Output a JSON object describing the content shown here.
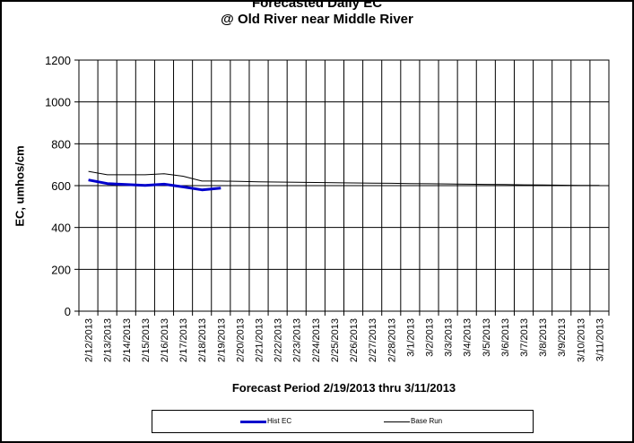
{
  "chart_data": {
    "type": "line",
    "title": "Forecasted Daily EC",
    "subtitle": "@ Old River near Middle River",
    "xlabel": "Forecast Period 2/19/2013 thru 3/11/2013",
    "ylabel": "EC, umhos/cm",
    "ylim": [
      0,
      1200
    ],
    "yticks": [
      "0",
      "200",
      "400",
      "600",
      "800",
      "1000",
      "1200"
    ],
    "categories": [
      "2/12/2013",
      "2/13/2013",
      "2/14/2013",
      "2/15/2013",
      "2/16/2013",
      "2/17/2013",
      "2/18/2013",
      "2/19/2013",
      "2/20/2013",
      "2/21/2013",
      "2/22/2013",
      "2/23/2013",
      "2/24/2013",
      "2/25/2013",
      "2/26/2013",
      "2/27/2013",
      "2/28/2013",
      "3/1/2013",
      "3/2/2013",
      "3/3/2013",
      "3/4/2013",
      "3/5/2013",
      "3/6/2013",
      "3/7/2013",
      "3/8/2013",
      "3/9/2013",
      "3/10/2013",
      "3/11/2013"
    ],
    "grid": true,
    "legend_position": "bottom",
    "series": [
      {
        "name": "Hist EC",
        "color": "#0000cc",
        "values": [
          627,
          610,
          605,
          601,
          607,
          594,
          580,
          588,
          null,
          null,
          null,
          null,
          null,
          null,
          null,
          null,
          null,
          null,
          null,
          null,
          null,
          null,
          null,
          null,
          null,
          null,
          null,
          null
        ]
      },
      {
        "name": "Base Run",
        "color": "#000000",
        "values": [
          668,
          652,
          652,
          652,
          657,
          645,
          622,
          622,
          620,
          618,
          617,
          616,
          615,
          614,
          613,
          612,
          611,
          610,
          609,
          608,
          607,
          606,
          605,
          604,
          603,
          602,
          601,
          601
        ]
      }
    ]
  }
}
